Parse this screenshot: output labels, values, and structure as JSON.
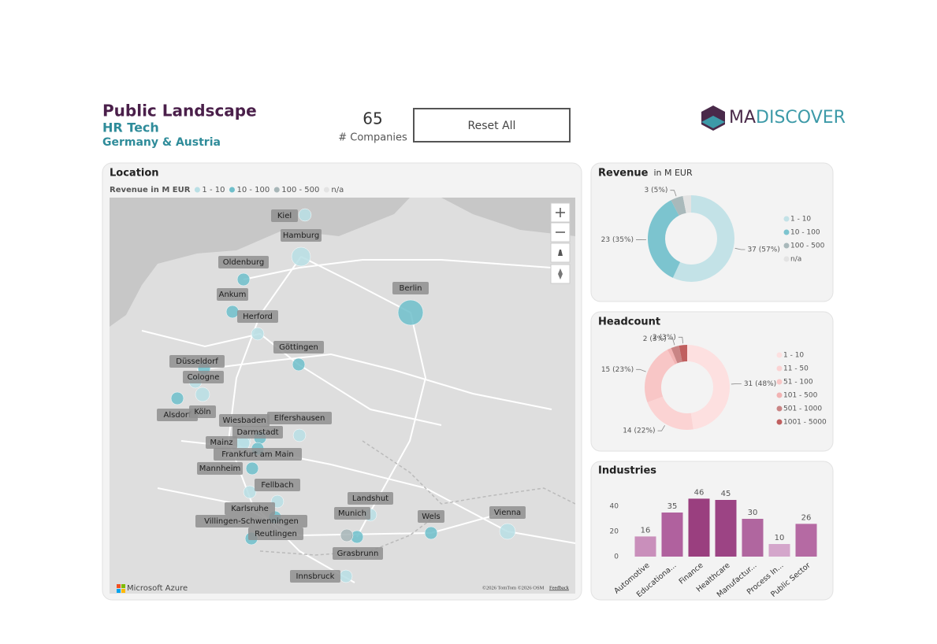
{
  "header": {
    "title": "Public Landscape",
    "subtitle": "HR Tech",
    "region": "Germany & Austria",
    "kpi": {
      "value": 65,
      "label": "# Companies"
    },
    "button": "Reset All",
    "logo": {
      "first": "MA",
      "rest": "DISCOVER"
    }
  },
  "chart_data": [
    {
      "type": "map",
      "title": "Location",
      "legend_title": "Revenue in M EUR",
      "legend": [
        {
          "name": "1 - 10",
          "color": "#b9dfe5"
        },
        {
          "name": "10 - 100",
          "color": "#6fbfcb"
        },
        {
          "name": "100 - 500",
          "color": "#a7b6b8"
        },
        {
          "name": "n/a",
          "color": "#e3e3e3"
        }
      ],
      "points": [
        {
          "name": "Kiel",
          "color": "#b9dfe5"
        },
        {
          "name": "Hamburg",
          "color": "#b9dfe5"
        },
        {
          "name": "Oldenburg",
          "color": "#6fbfcb"
        },
        {
          "name": "Ankum",
          "color": "#6fbfcb"
        },
        {
          "name": "Herford",
          "color": "#b9dfe5"
        },
        {
          "name": "Berlin",
          "color": "#6fbfcb"
        },
        {
          "name": "Göttingen",
          "color": "#6fbfcb"
        },
        {
          "name": "Düsseldorf",
          "color": "#6fbfcb"
        },
        {
          "name": "Cologne",
          "color": "#b9dfe5"
        },
        {
          "name": "Alsdorf",
          "color": "#6fbfcb"
        },
        {
          "name": "Köln",
          "color": "#b9dfe5"
        },
        {
          "name": "Wiesbaden",
          "color": "#b9dfe5"
        },
        {
          "name": "Elfershausen",
          "color": "#b9dfe5"
        },
        {
          "name": "Darmstadt",
          "color": "#6fbfcb"
        },
        {
          "name": "Mainz",
          "color": "#b9dfe5"
        },
        {
          "name": "Frankfurt am Main",
          "color": "#6fbfcb"
        },
        {
          "name": "Mannheim",
          "color": "#6fbfcb"
        },
        {
          "name": "Fellbach",
          "color": "#b9dfe5"
        },
        {
          "name": "Karlsruhe",
          "color": "#b9dfe5"
        },
        {
          "name": "Villingen-Schwenningen",
          "color": "#6fbfcb"
        },
        {
          "name": "Reutlingen",
          "color": "#6fbfcb"
        },
        {
          "name": "Landshut",
          "color": "#b9dfe5"
        },
        {
          "name": "Munich",
          "color": "#6fbfcb"
        },
        {
          "name": "Grasbrunn",
          "color": "#a7b6b8"
        },
        {
          "name": "Wels",
          "color": "#6fbfcb"
        },
        {
          "name": "Vienna",
          "color": "#b9dfe5"
        },
        {
          "name": "Innsbruck",
          "color": "#b9dfe5"
        }
      ],
      "attribution": "Microsoft Azure",
      "credits": "©2026 TomTom ©2026 OSM",
      "feedback": "Feedback"
    },
    {
      "type": "donut",
      "title": "Revenue",
      "subtitle": "in M EUR",
      "categories": [
        "1 - 10",
        "10 - 100",
        "100 - 500",
        "n/a"
      ],
      "values": [
        37,
        23,
        3,
        2
      ],
      "value_labels": [
        "37 (57%)",
        "23 (35%)",
        "3 (5%)",
        null
      ],
      "colors": [
        "#c3e2e7",
        "#7cc4cf",
        "#a9b9bb",
        "#e3e3e3"
      ]
    },
    {
      "type": "donut",
      "title": "Headcount",
      "categories": [
        "1 - 10",
        "11 - 50",
        "51 - 100",
        "101 - 500",
        "501 - 1000",
        "1001 - 5000"
      ],
      "values": [
        31,
        14,
        15,
        1,
        2,
        2
      ],
      "value_labels": [
        "31 (48%)",
        "14 (22%)",
        "15 (23%)",
        null,
        "2 (3%)",
        "2 (3%)"
      ],
      "colors": [
        "#fde0e0",
        "#fbd3d3",
        "#f8c6c6",
        "#f2b3b3",
        "#c98585",
        "#c05f5f"
      ]
    },
    {
      "type": "bar",
      "title": "Industries",
      "categories": [
        "Automotive",
        "Educationa...",
        "Finance",
        "Healthcare",
        "Manufactur...",
        "Process In...",
        "Public Sector"
      ],
      "values": [
        16,
        35,
        46,
        45,
        30,
        10,
        26
      ],
      "colors": [
        "#c98fbb",
        "#b0619e",
        "#9a3f7f",
        "#9c4484",
        "#b0669f",
        "#d4a6cb",
        "#b56aa3"
      ],
      "ylim": [
        0,
        50
      ],
      "yticks": [
        0,
        20,
        40
      ]
    }
  ]
}
